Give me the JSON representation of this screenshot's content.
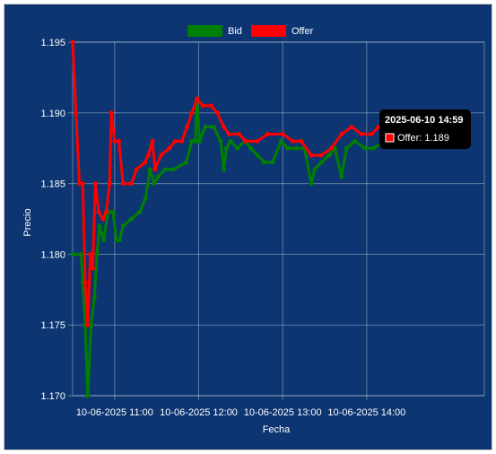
{
  "chart_data": {
    "type": "line",
    "xlabel": "Fecha",
    "ylabel": "Precio",
    "ylim": [
      1.17,
      1.195
    ],
    "y_ticks": [
      "1.170",
      "1.175",
      "1.180",
      "1.185",
      "1.190",
      "1.195"
    ],
    "x_ticks": [
      {
        "t": 0.5,
        "label": "10-06-2025 11:00"
      },
      {
        "t": 1.5,
        "label": "10-06-2025 12:00"
      },
      {
        "t": 2.5,
        "label": "10-06-2025 13:00"
      },
      {
        "t": 3.5,
        "label": "10-06-2025 14:00"
      }
    ],
    "x_range": [
      0,
      4.9
    ],
    "grid": true,
    "legend_position": "top",
    "series": [
      {
        "name": "Bid",
        "color": "#008000",
        "points": [
          [
            0.0,
            1.18
          ],
          [
            0.1,
            1.18
          ],
          [
            0.12,
            1.178
          ],
          [
            0.15,
            1.175
          ],
          [
            0.18,
            1.17
          ],
          [
            0.22,
            1.175
          ],
          [
            0.26,
            1.177
          ],
          [
            0.29,
            1.18
          ],
          [
            0.32,
            1.182
          ],
          [
            0.37,
            1.181
          ],
          [
            0.42,
            1.183
          ],
          [
            0.48,
            1.183
          ],
          [
            0.52,
            1.181
          ],
          [
            0.56,
            1.181
          ],
          [
            0.6,
            1.182
          ],
          [
            0.7,
            1.1825
          ],
          [
            0.8,
            1.183
          ],
          [
            0.87,
            1.184
          ],
          [
            0.92,
            1.186
          ],
          [
            0.97,
            1.185
          ],
          [
            1.02,
            1.1855
          ],
          [
            1.1,
            1.186
          ],
          [
            1.2,
            1.186
          ],
          [
            1.35,
            1.1865
          ],
          [
            1.42,
            1.188
          ],
          [
            1.46,
            1.188
          ],
          [
            1.48,
            1.191
          ],
          [
            1.51,
            1.188
          ],
          [
            1.58,
            1.189
          ],
          [
            1.68,
            1.189
          ],
          [
            1.76,
            1.188
          ],
          [
            1.8,
            1.186
          ],
          [
            1.83,
            1.1875
          ],
          [
            1.88,
            1.188
          ],
          [
            1.96,
            1.1875
          ],
          [
            2.05,
            1.188
          ],
          [
            2.12,
            1.1875
          ],
          [
            2.2,
            1.187
          ],
          [
            2.28,
            1.1865
          ],
          [
            2.38,
            1.1865
          ],
          [
            2.48,
            1.188
          ],
          [
            2.56,
            1.1875
          ],
          [
            2.66,
            1.1875
          ],
          [
            2.76,
            1.1875
          ],
          [
            2.84,
            1.185
          ],
          [
            2.88,
            1.186
          ],
          [
            2.96,
            1.1865
          ],
          [
            3.05,
            1.187
          ],
          [
            3.12,
            1.1875
          ],
          [
            3.2,
            1.1855
          ],
          [
            3.26,
            1.1875
          ],
          [
            3.36,
            1.188
          ],
          [
            3.48,
            1.1875
          ],
          [
            3.58,
            1.1875
          ],
          [
            3.72,
            1.188
          ]
        ]
      },
      {
        "name": "Offer",
        "color": "#ff0000",
        "points": [
          [
            0.0,
            1.195
          ],
          [
            0.04,
            1.19
          ],
          [
            0.08,
            1.185
          ],
          [
            0.12,
            1.185
          ],
          [
            0.15,
            1.178
          ],
          [
            0.18,
            1.175
          ],
          [
            0.21,
            1.18
          ],
          [
            0.24,
            1.179
          ],
          [
            0.27,
            1.185
          ],
          [
            0.31,
            1.183
          ],
          [
            0.36,
            1.1825
          ],
          [
            0.4,
            1.183
          ],
          [
            0.44,
            1.185
          ],
          [
            0.46,
            1.19
          ],
          [
            0.5,
            1.188
          ],
          [
            0.55,
            1.188
          ],
          [
            0.6,
            1.185
          ],
          [
            0.7,
            1.185
          ],
          [
            0.76,
            1.186
          ],
          [
            0.86,
            1.1865
          ],
          [
            0.9,
            1.187
          ],
          [
            0.95,
            1.188
          ],
          [
            0.98,
            1.186
          ],
          [
            1.05,
            1.187
          ],
          [
            1.15,
            1.1875
          ],
          [
            1.22,
            1.188
          ],
          [
            1.3,
            1.188
          ],
          [
            1.36,
            1.189
          ],
          [
            1.42,
            1.19
          ],
          [
            1.48,
            1.191
          ],
          [
            1.55,
            1.1905
          ],
          [
            1.65,
            1.1905
          ],
          [
            1.72,
            1.19
          ],
          [
            1.8,
            1.189
          ],
          [
            1.86,
            1.1885
          ],
          [
            1.98,
            1.1885
          ],
          [
            2.06,
            1.188
          ],
          [
            2.2,
            1.188
          ],
          [
            2.32,
            1.1885
          ],
          [
            2.5,
            1.1885
          ],
          [
            2.62,
            1.188
          ],
          [
            2.72,
            1.188
          ],
          [
            2.84,
            1.187
          ],
          [
            2.96,
            1.187
          ],
          [
            3.08,
            1.1875
          ],
          [
            3.2,
            1.1885
          ],
          [
            3.32,
            1.189
          ],
          [
            3.44,
            1.1885
          ],
          [
            3.56,
            1.1885
          ],
          [
            3.64,
            1.189
          ],
          [
            3.72,
            1.189
          ]
        ]
      }
    ]
  },
  "tooltip": {
    "title": "2025-06-10 14:59",
    "label": "Offer: 1.189",
    "swatch_color": "#ff0000"
  },
  "colors": {
    "background": "#0c3571",
    "grid": "rgba(255,255,255,0.35)",
    "text": "#ffffff"
  }
}
